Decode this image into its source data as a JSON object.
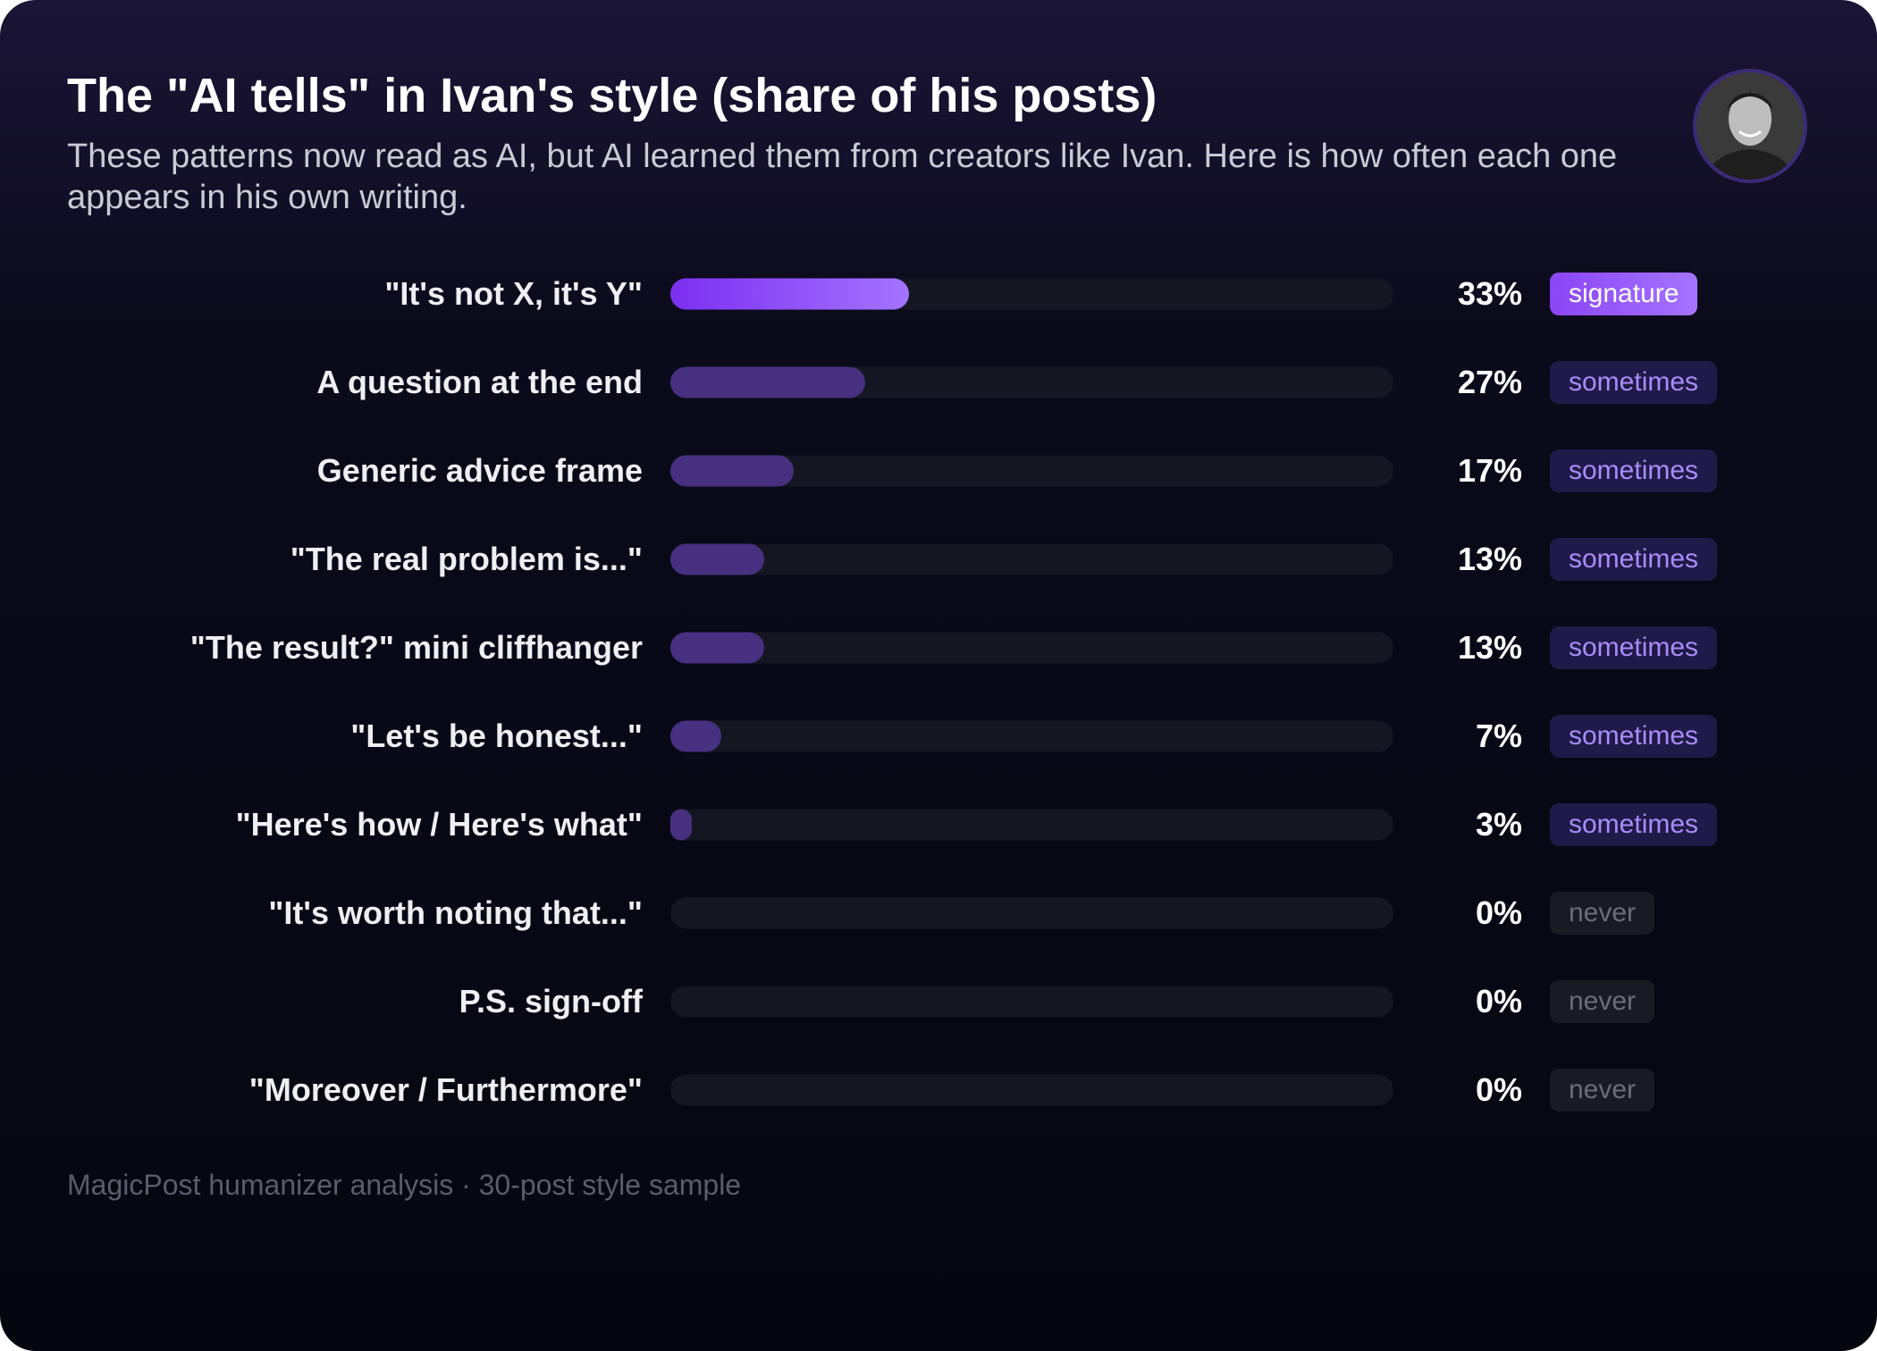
{
  "chart_data": {
    "type": "bar",
    "orientation": "horizontal",
    "title": "The \"AI tells\" in Ivan's style (share of his posts)",
    "subtitle": "These patterns now read as AI, but AI learned them from creators like Ivan. Here is how often each one appears in his own writing.",
    "categories": [
      "\"It's not X, it's Y\"",
      "A question at the end",
      "Generic advice frame",
      "\"The real problem is...\"",
      "\"The result?\" mini cliffhanger",
      "\"Let's be honest...\"",
      "\"Here's how / Here's what\"",
      "\"It's worth noting that...\"",
      "P.S. sign-off",
      "\"Moreover / Furthermore\""
    ],
    "values": [
      33,
      27,
      17,
      13,
      13,
      7,
      3,
      0,
      0,
      0
    ],
    "value_labels": [
      "33%",
      "27%",
      "17%",
      "13%",
      "13%",
      "7%",
      "3%",
      "0%",
      "0%",
      "0%"
    ],
    "tags": [
      "signature",
      "sometimes",
      "sometimes",
      "sometimes",
      "sometimes",
      "sometimes",
      "sometimes",
      "never",
      "never",
      "never"
    ],
    "colors": [
      "linear-gradient(90deg,#7b2ff0,#a474ff)",
      "#47307f",
      "#47307f",
      "#47307f",
      "#47307f",
      "#47307f",
      "#47307f",
      "#2a2d38",
      "#2a2d38",
      "#2a2d38"
    ],
    "tag_colors": [
      "linear-gradient(90deg,#8b45f5,#a474ff)",
      "#1f1a48",
      "#1f1a48",
      "#1f1a48",
      "#1f1a48",
      "#1f1a48",
      "#1f1a48",
      "#191b23",
      "#191b23",
      "#191b23"
    ],
    "tag_text_colors": [
      "#ffffff",
      "#a98cfb",
      "#a98cfb",
      "#a98cfb",
      "#a98cfb",
      "#a98cfb",
      "#a98cfb",
      "#6a6e79",
      "#6a6e79",
      "#6a6e79"
    ],
    "xlim": [
      0,
      100
    ],
    "footer": "MagicPost humanizer analysis · 30-post style sample"
  }
}
